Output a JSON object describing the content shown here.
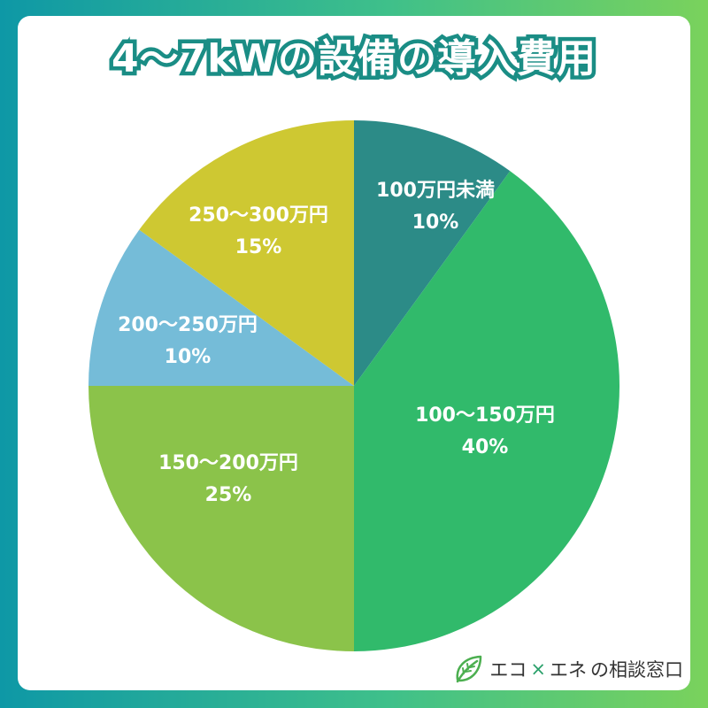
{
  "title": "4〜7kWの設備の導入費用",
  "brand": {
    "logo_icon": "leaf-icon",
    "name_part1": "エコ",
    "separator": "×",
    "name_part2": "エネ",
    "name_part3": "の相談窓口"
  },
  "chart_data": {
    "type": "pie",
    "title": "4〜7kWの設備の導入費用",
    "slices": [
      {
        "label": "100万円未満",
        "percent_text": "10%",
        "value": 10,
        "color": "#2c8b87"
      },
      {
        "label": "100〜150万円",
        "percent_text": "40%",
        "value": 40,
        "color": "#31ba6b"
      },
      {
        "label": "150〜200万円",
        "percent_text": "25%",
        "value": 25,
        "color": "#8bc34a"
      },
      {
        "label": "200〜250万円",
        "percent_text": "10%",
        "value": 10,
        "color": "#75bcd8"
      },
      {
        "label": "250〜300万円",
        "percent_text": "15%",
        "value": 15,
        "color": "#cec832"
      }
    ]
  }
}
